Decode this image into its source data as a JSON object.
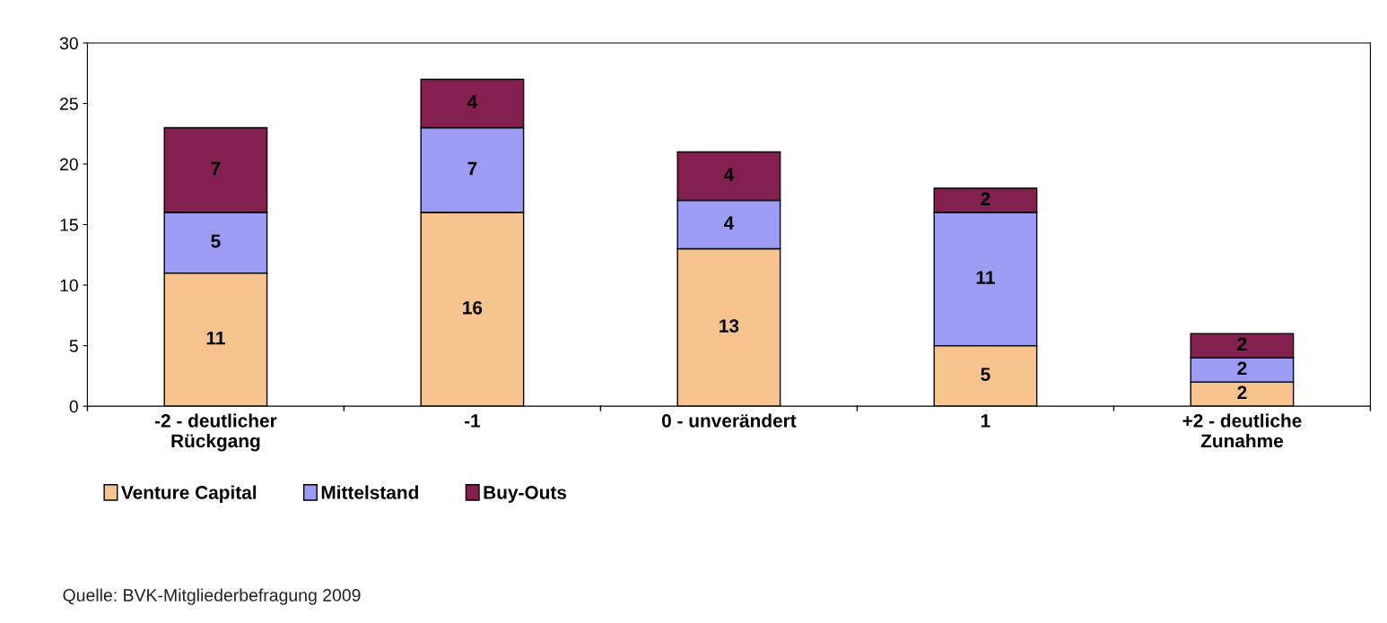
{
  "chart_data": {
    "type": "bar",
    "stacked": true,
    "categories": [
      "-2 - deutlicher\nRückgang",
      "-1",
      "0 - unverändert",
      "1",
      "+2 - deutliche\nZunahme"
    ],
    "series": [
      {
        "name": "Venture Capital",
        "color": "#f7c48f",
        "values": [
          11,
          16,
          13,
          5,
          2
        ]
      },
      {
        "name": "Mittelstand",
        "color": "#9c9cf5",
        "values": [
          5,
          7,
          4,
          11,
          2
        ]
      },
      {
        "name": "Buy-Outs",
        "color": "#84204f",
        "values": [
          7,
          4,
          4,
          2,
          2
        ]
      }
    ],
    "ylim": [
      0,
      30
    ],
    "yticks": [
      0,
      5,
      10,
      15,
      20,
      25,
      30
    ],
    "grid": false,
    "legend": "bottom",
    "data_labels": true,
    "annotations": [
      "Quelle: BVK-Mitgliederbefragung 2009"
    ]
  }
}
